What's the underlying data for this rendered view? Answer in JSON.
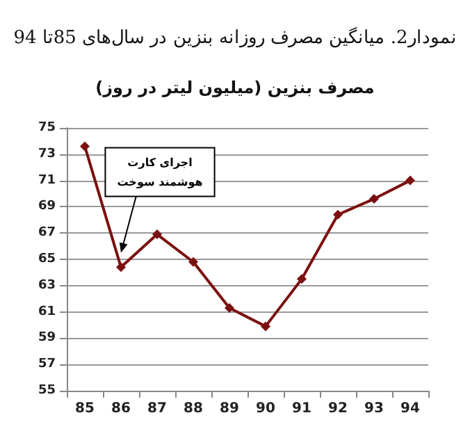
{
  "chart_data": {
    "type": "line",
    "title": "نمودار2. میانگین مصرف روزانه بنزین در سال‌های 85تا 94",
    "subtitle": "مصرف بنزین (میلیون لیتر در روز)",
    "categories": [
      "85",
      "86",
      "87",
      "88",
      "89",
      "90",
      "91",
      "92",
      "93",
      "94"
    ],
    "series": [
      {
        "color": "#7b1010",
        "values": [
          73.6,
          64.4,
          66.9,
          64.8,
          61.3,
          59.9,
          63.5,
          68.4,
          69.6,
          71.0
        ]
      }
    ],
    "ylim": [
      55,
      75
    ],
    "yticks": [
      55,
      57,
      59,
      61,
      63,
      65,
      67,
      69,
      71,
      73,
      75
    ],
    "grid": "y",
    "marker": "diamond",
    "line_style": "solid",
    "annotations": [
      {
        "text": "اجرای کارت هوشمند سوخت",
        "x": "86",
        "y": 65.5
      }
    ]
  }
}
